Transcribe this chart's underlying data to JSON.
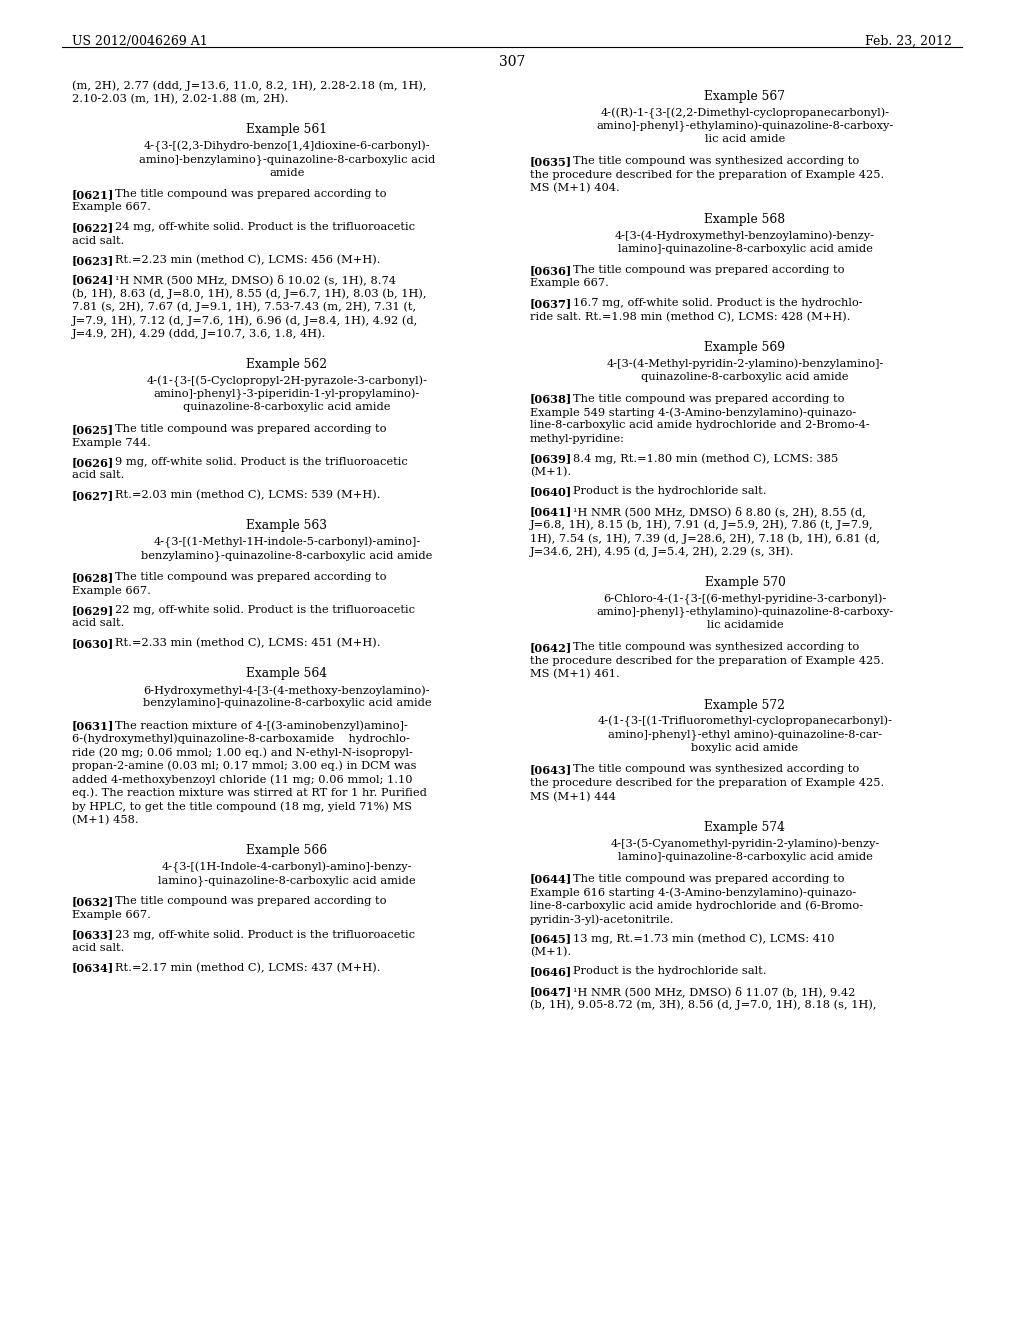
{
  "page_number": "307",
  "header_left": "US 2012/0046269 A1",
  "header_right": "Feb. 23, 2012",
  "background_color": "#ffffff",
  "text_color": "#000000",
  "left_column": [
    {
      "type": "body",
      "text": "(m, 2H), 2.77 (ddd, J=13.6, 11.0, 8.2, 1H), 2.28-2.18 (m, 1H),\n2.10-2.03 (m, 1H), 2.02-1.88 (m, 2H)."
    },
    {
      "type": "example_heading",
      "text": "Example 561"
    },
    {
      "type": "example_title",
      "text": "4-{3-[(2,3-Dihydro-benzo[1,4]dioxine-6-carbonyl)-\namino]-benzylamino}-quinazoline-8-carboxylic acid\namide"
    },
    {
      "type": "paragraph",
      "tag": "[0621]",
      "text": "The title compound was prepared according to\nExample 667."
    },
    {
      "type": "paragraph",
      "tag": "[0622]",
      "text": "24 mg, off-white solid. Product is the trifluoroacetic\nacid salt."
    },
    {
      "type": "paragraph",
      "tag": "[0623]",
      "text": "Rt.=2.23 min (method C), LCMS: 456 (M+H)."
    },
    {
      "type": "paragraph",
      "tag": "[0624]",
      "text": "¹H NMR (500 MHz, DMSO) δ 10.02 (s, 1H), 8.74\n(b, 1H), 8.63 (d, J=8.0, 1H), 8.55 (d, J=6.7, 1H), 8.03 (b, 1H),\n7.81 (s, 2H), 7.67 (d, J=9.1, 1H), 7.53-7.43 (m, 2H), 7.31 (t,\nJ=7.9, 1H), 7.12 (d, J=7.6, 1H), 6.96 (d, J=8.4, 1H), 4.92 (d,\nJ=4.9, 2H), 4.29 (ddd, J=10.7, 3.6, 1.8, 4H)."
    },
    {
      "type": "example_heading",
      "text": "Example 562"
    },
    {
      "type": "example_title",
      "text": "4-(1-{3-[(5-Cyclopropyl-2H-pyrazole-3-carbonyl)-\namino]-phenyl}-3-piperidin-1-yl-propylamino)-\nquinazoline-8-carboxylic acid amide"
    },
    {
      "type": "paragraph",
      "tag": "[0625]",
      "text": "The title compound was prepared according to\nExample 744."
    },
    {
      "type": "paragraph",
      "tag": "[0626]",
      "text": "9 mg, off-white solid. Product is the trifluoroacetic\nacid salt."
    },
    {
      "type": "paragraph",
      "tag": "[0627]",
      "text": "Rt.=2.03 min (method C), LCMS: 539 (M+H)."
    },
    {
      "type": "example_heading",
      "text": "Example 563"
    },
    {
      "type": "example_title",
      "text": "4-{3-[(1-Methyl-1H-indole-5-carbonyl)-amino]-\nbenzylamino}-quinazoline-8-carboxylic acid amide"
    },
    {
      "type": "paragraph",
      "tag": "[0628]",
      "text": "The title compound was prepared according to\nExample 667."
    },
    {
      "type": "paragraph",
      "tag": "[0629]",
      "text": "22 mg, off-white solid. Product is the trifluoroacetic\nacid salt."
    },
    {
      "type": "paragraph",
      "tag": "[0630]",
      "text": "Rt.=2.33 min (method C), LCMS: 451 (M+H)."
    },
    {
      "type": "example_heading",
      "text": "Example 564"
    },
    {
      "type": "example_title",
      "text": "6-Hydroxymethyl-4-[3-(4-methoxy-benzoylamino)-\nbenzylamino]-quinazoline-8-carboxylic acid amide"
    },
    {
      "type": "paragraph",
      "tag": "[0631]",
      "text": "The reaction mixture of 4-[(3-aminobenzyl)amino]-\n6-(hydroxymethyl)quinazoline-8-carboxamide    hydrochlo-\nride (20 mg; 0.06 mmol; 1.00 eq.) and N-ethyl-N-isopropyl-\npropan-2-amine (0.03 ml; 0.17 mmol; 3.00 eq.) in DCM was\nadded 4-methoxybenzoyl chloride (11 mg; 0.06 mmol; 1.10\neq.). The reaction mixture was stirred at RT for 1 hr. Purified\nby HPLC, to get the title compound (18 mg, yield 71%) MS\n(M+1) 458."
    },
    {
      "type": "example_heading",
      "text": "Example 566"
    },
    {
      "type": "example_title",
      "text": "4-{3-[(1H-Indole-4-carbonyl)-amino]-benzy-\nlamino}-quinazoline-8-carboxylic acid amide"
    },
    {
      "type": "paragraph",
      "tag": "[0632]",
      "text": "The title compound was prepared according to\nExample 667."
    },
    {
      "type": "paragraph",
      "tag": "[0633]",
      "text": "23 mg, off-white solid. Product is the trifluoroacetic\nacid salt."
    },
    {
      "type": "paragraph",
      "tag": "[0634]",
      "text": "Rt.=2.17 min (method C), LCMS: 437 (M+H)."
    }
  ],
  "right_column": [
    {
      "type": "example_heading",
      "text": "Example 567"
    },
    {
      "type": "example_title",
      "text": "4-((R)-1-{3-[(2,2-Dimethyl-cyclopropanecarbonyl)-\namino]-phenyl}-ethylamino)-quinazoline-8-carboxy-\nlic acid amide"
    },
    {
      "type": "paragraph",
      "tag": "[0635]",
      "text": "The title compound was synthesized according to\nthe procedure described for the preparation of Example 425.\nMS (M+1) 404."
    },
    {
      "type": "example_heading",
      "text": "Example 568"
    },
    {
      "type": "example_title",
      "text": "4-[3-(4-Hydroxymethyl-benzoylamino)-benzy-\nlamino]-quinazoline-8-carboxylic acid amide"
    },
    {
      "type": "paragraph",
      "tag": "[0636]",
      "text": "The title compound was prepared according to\nExample 667."
    },
    {
      "type": "paragraph",
      "tag": "[0637]",
      "text": "16.7 mg, off-white solid. Product is the hydrochlo-\nride salt. Rt.=1.98 min (method C), LCMS: 428 (M+H)."
    },
    {
      "type": "example_heading",
      "text": "Example 569"
    },
    {
      "type": "example_title",
      "text": "4-[3-(4-Methyl-pyridin-2-ylamino)-benzylamino]-\nquinazoline-8-carboxylic acid amide"
    },
    {
      "type": "paragraph",
      "tag": "[0638]",
      "text": "The title compound was prepared according to\nExample 549 starting 4-(3-Amino-benzylamino)-quinazo-\nline-8-carboxylic acid amide hydrochloride and 2-Bromo-4-\nmethyl-pyridine:"
    },
    {
      "type": "paragraph",
      "tag": "[0639]",
      "text": "8.4 mg, Rt.=1.80 min (method C), LCMS: 385\n(M+1)."
    },
    {
      "type": "paragraph",
      "tag": "[0640]",
      "text": "Product is the hydrochloride salt."
    },
    {
      "type": "paragraph",
      "tag": "[0641]",
      "text": "¹H NMR (500 MHz, DMSO) δ 8.80 (s, 2H), 8.55 (d,\nJ=6.8, 1H), 8.15 (b, 1H), 7.91 (d, J=5.9, 2H), 7.86 (t, J=7.9,\n1H), 7.54 (s, 1H), 7.39 (d, J=28.6, 2H), 7.18 (b, 1H), 6.81 (d,\nJ=34.6, 2H), 4.95 (d, J=5.4, 2H), 2.29 (s, 3H)."
    },
    {
      "type": "example_heading",
      "text": "Example 570"
    },
    {
      "type": "example_title",
      "text": "6-Chloro-4-(1-{3-[(6-methyl-pyridine-3-carbonyl)-\namino]-phenyl}-ethylamino)-quinazoline-8-carboxy-\nlic acidamide"
    },
    {
      "type": "paragraph",
      "tag": "[0642]",
      "text": "The title compound was synthesized according to\nthe procedure described for the preparation of Example 425.\nMS (M+1) 461."
    },
    {
      "type": "example_heading",
      "text": "Example 572"
    },
    {
      "type": "example_title",
      "text": "4-(1-{3-[(1-Trifluoromethyl-cyclopropanecarbonyl)-\namino]-phenyl}-ethyl amino)-quinazoline-8-car-\nboxylic acid amide"
    },
    {
      "type": "paragraph",
      "tag": "[0643]",
      "text": "The title compound was synthesized according to\nthe procedure described for the preparation of Example 425.\nMS (M+1) 444"
    },
    {
      "type": "example_heading",
      "text": "Example 574"
    },
    {
      "type": "example_title",
      "text": "4-[3-(5-Cyanomethyl-pyridin-2-ylamino)-benzy-\nlamino]-quinazoline-8-carboxylic acid amide"
    },
    {
      "type": "paragraph",
      "tag": "[0644]",
      "text": "The title compound was prepared according to\nExample 616 starting 4-(3-Amino-benzylamino)-quinazo-\nline-8-carboxylic acid amide hydrochloride and (6-Bromo-\npyridin-3-yl)-acetonitrile."
    },
    {
      "type": "paragraph",
      "tag": "[0645]",
      "text": "13 mg, Rt.=1.73 min (method C), LCMS: 410\n(M+1)."
    },
    {
      "type": "paragraph",
      "tag": "[0646]",
      "text": "Product is the hydrochloride salt."
    },
    {
      "type": "paragraph",
      "tag": "[0647]",
      "text": "¹H NMR (500 MHz, DMSO) δ 11.07 (b, 1H), 9.42\n(b, 1H), 9.05-8.72 (m, 3H), 8.56 (d, J=7.0, 1H), 8.18 (s, 1H),"
    }
  ]
}
